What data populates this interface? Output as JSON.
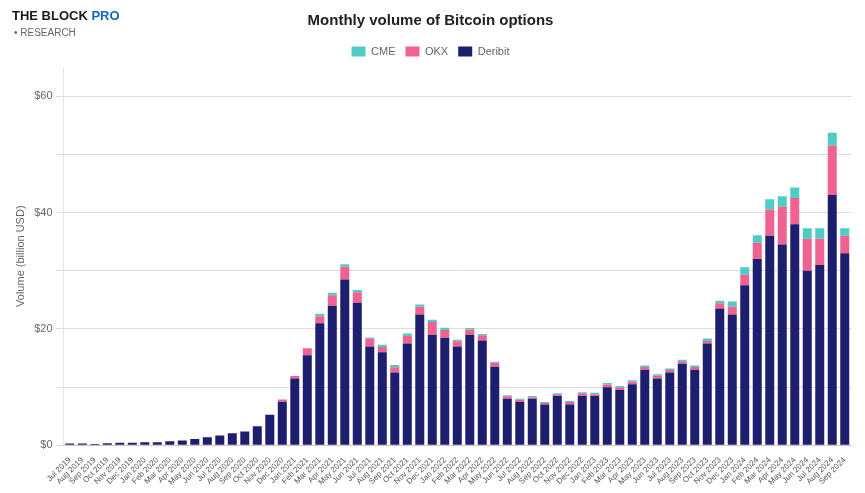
{
  "chart_data": {
    "type": "bar",
    "stacked": true,
    "title": "Monthly volume of Bitcoin options",
    "ylabel": "Volume (billion USD)",
    "annotations": [
      {
        "text": "THE BLOCK",
        "color": "#1a1a1a"
      },
      {
        "text": "PRO",
        "color": "#1565c0"
      },
      {
        "text": "• RESEARCH",
        "color": "#666666"
      }
    ],
    "categories": [
      "Jul 2019",
      "Aug 2019",
      "Sep 2019",
      "Oct 2019",
      "Nov 2019",
      "Dec 2019",
      "Jan 2020",
      "Feb 2020",
      "Mar 2020",
      "Apr 2020",
      "May 2020",
      "Jun 2020",
      "Jul 2020",
      "Aug 2020",
      "Sep 2020",
      "Oct 2020",
      "Nov 2020",
      "Dec 2020",
      "Jan 2021",
      "Feb 2021",
      "Mar 2021",
      "Apr 2021",
      "May 2021",
      "Jun 2021",
      "Jul 2021",
      "Aug 2021",
      "Sep 2021",
      "Oct 2021",
      "Nov 2021",
      "Dec 2021",
      "Jan 2022",
      "Feb 2022",
      "Mar 2022",
      "Apr 2022",
      "May 2022",
      "Jun 2022",
      "Jul 2022",
      "Aug 2022",
      "Sep 2022",
      "Oct 2022",
      "Nov 2022",
      "Dec 2022",
      "Jan 2023",
      "Feb 2023",
      "Mar 2023",
      "Apr 2023",
      "May 2023",
      "Jun 2023",
      "Jul 2023",
      "Aug 2023",
      "Sep 2023",
      "Oct 2023",
      "Nov 2023",
      "Dec 2023",
      "Jan 2024",
      "Feb 2024",
      "Mar 2024",
      "Apr 2024",
      "May 2024",
      "Jun 2024",
      "Jul 2024",
      "Aug 2024",
      "Sep 2024"
    ],
    "series": [
      {
        "name": "Deribit",
        "color": "#1e1e6e",
        "values": [
          0.3,
          0.3,
          0.25,
          0.35,
          0.45,
          0.45,
          0.55,
          0.55,
          0.7,
          0.85,
          1.1,
          1.4,
          1.7,
          2.1,
          2.4,
          3.3,
          5.2,
          7.5,
          11.5,
          15.5,
          21.0,
          24.0,
          28.5,
          24.5,
          17.0,
          16.0,
          12.5,
          17.5,
          22.5,
          19.0,
          18.5,
          17.0,
          19.0,
          18.0,
          13.5,
          8.0,
          7.5,
          8.0,
          7.0,
          8.5,
          7.0,
          8.5,
          8.5,
          10.0,
          9.5,
          10.5,
          13.0,
          11.5,
          12.5,
          14.0,
          13.0,
          17.5,
          23.5,
          22.5,
          27.5,
          32.0,
          36.0,
          34.5,
          38.0,
          30.0,
          31.0,
          43.0,
          33.0
        ]
      },
      {
        "name": "OKX",
        "color": "#f06292",
        "values": [
          0.0,
          0.0,
          0.0,
          0.0,
          0.0,
          0.0,
          0.0,
          0.0,
          0.0,
          0.0,
          0.0,
          0.0,
          0.0,
          0.0,
          0.0,
          0.0,
          0.1,
          0.4,
          0.4,
          1.2,
          1.2,
          1.8,
          2.2,
          1.8,
          1.3,
          0.9,
          0.9,
          1.3,
          1.3,
          2.2,
          1.3,
          0.9,
          0.9,
          0.9,
          0.7,
          0.45,
          0.35,
          0.28,
          0.28,
          0.28,
          0.45,
          0.45,
          0.28,
          0.45,
          0.45,
          0.45,
          0.45,
          0.45,
          0.45,
          0.45,
          0.45,
          0.45,
          0.9,
          1.3,
          1.8,
          2.8,
          4.5,
          6.5,
          4.5,
          5.5,
          4.5,
          8.5,
          3.0
        ]
      },
      {
        "name": "CME",
        "color": "#4ecdc4",
        "values": [
          0.0,
          0.0,
          0.0,
          0.0,
          0.0,
          0.0,
          0.0,
          0.0,
          0.0,
          0.0,
          0.0,
          0.0,
          0.0,
          0.0,
          0.0,
          0.0,
          0.0,
          0.0,
          0.0,
          0.0,
          0.4,
          0.4,
          0.4,
          0.4,
          0.25,
          0.4,
          0.4,
          0.4,
          0.4,
          0.4,
          0.4,
          0.25,
          0.25,
          0.25,
          0.18,
          0.18,
          0.18,
          0.18,
          0.18,
          0.18,
          0.18,
          0.18,
          0.25,
          0.25,
          0.25,
          0.25,
          0.25,
          0.25,
          0.25,
          0.25,
          0.25,
          0.4,
          0.45,
          0.9,
          1.3,
          1.3,
          1.8,
          1.8,
          1.8,
          1.8,
          1.8,
          2.2,
          1.3
        ]
      }
    ],
    "ylim": [
      0,
      65
    ],
    "yticks": [
      {
        "value": 0,
        "label": "$0"
      },
      {
        "value": 10,
        "label": null
      },
      {
        "value": 20,
        "label": "$20"
      },
      {
        "value": 30,
        "label": null
      },
      {
        "value": 40,
        "label": "$40"
      },
      {
        "value": 50,
        "label": null
      },
      {
        "value": 60,
        "label": "$60"
      }
    ],
    "grid": true,
    "legend": "top"
  }
}
